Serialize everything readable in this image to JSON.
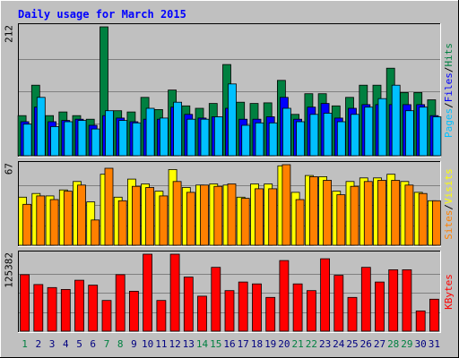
{
  "chart_data": [
    {
      "type": "bar",
      "title": "Daily usage for March 2015",
      "categories": [
        "1",
        "2",
        "3",
        "4",
        "5",
        "6",
        "7",
        "8",
        "9",
        "10",
        "11",
        "12",
        "13",
        "14",
        "15",
        "16",
        "17",
        "18",
        "19",
        "20",
        "21",
        "22",
        "23",
        "24",
        "25",
        "26",
        "27",
        "28",
        "29",
        "30",
        "31"
      ],
      "weekend_days": [
        "1",
        "7",
        "8",
        "14",
        "15",
        "21",
        "22",
        "28",
        "29"
      ],
      "ymax": 212,
      "ymax_label": "212",
      "series_labels": [
        "Pages",
        "Files",
        "Hits"
      ],
      "series_label_separator": "/",
      "series": [
        {
          "name": "Hits",
          "color": "#008040",
          "values": [
            66,
            116,
            66,
            72,
            66,
            60,
            212,
            74,
            72,
            96,
            76,
            108,
            82,
            78,
            86,
            150,
            88,
            86,
            87,
            124,
            68,
            102,
            102,
            82,
            96,
            116,
            116,
            144,
            104,
            104,
            92
          ]
        },
        {
          "name": "Files",
          "color": "#0000ff",
          "values": [
            56,
            80,
            56,
            58,
            60,
            50,
            66,
            62,
            56,
            60,
            60,
            80,
            68,
            62,
            64,
            78,
            60,
            60,
            64,
            96,
            60,
            80,
            86,
            62,
            78,
            84,
            84,
            84,
            84,
            84,
            66
          ]
        },
        {
          "name": "Pages",
          "color": "#00c0ff",
          "values": [
            52,
            96,
            48,
            56,
            58,
            44,
            74,
            58,
            54,
            78,
            62,
            88,
            60,
            60,
            64,
            118,
            50,
            54,
            54,
            78,
            56,
            68,
            70,
            56,
            68,
            80,
            94,
            116,
            74,
            80,
            64
          ]
        }
      ]
    },
    {
      "type": "bar",
      "categories": [
        "1",
        "2",
        "3",
        "4",
        "5",
        "6",
        "7",
        "8",
        "9",
        "10",
        "11",
        "12",
        "13",
        "14",
        "15",
        "16",
        "17",
        "18",
        "19",
        "20",
        "21",
        "22",
        "23",
        "24",
        "25",
        "26",
        "27",
        "28",
        "29",
        "30",
        "31"
      ],
      "ymax": 67,
      "ymax_label": "67",
      "series_labels": [
        "Sites",
        "Visits"
      ],
      "series_label_separator": "/",
      "series": [
        {
          "name": "Visits",
          "color": "#ffff00",
          "values": [
            40,
            43,
            41,
            46,
            53,
            36,
            59,
            40,
            55,
            51,
            45,
            63,
            48,
            50,
            51,
            50,
            40,
            51,
            51,
            66,
            44,
            58,
            57,
            45,
            53,
            56,
            56,
            59,
            53,
            44,
            37
          ]
        },
        {
          "name": "Sites",
          "color": "#ff8000",
          "values": [
            34,
            41,
            38,
            45,
            50,
            21,
            64,
            37,
            49,
            48,
            41,
            53,
            44,
            50,
            49,
            51,
            39,
            47,
            47,
            67,
            38,
            57,
            54,
            42,
            49,
            53,
            54,
            54,
            50,
            43,
            37
          ]
        }
      ]
    },
    {
      "type": "bar",
      "categories": [
        "1",
        "2",
        "3",
        "4",
        "5",
        "6",
        "7",
        "8",
        "9",
        "10",
        "11",
        "12",
        "13",
        "14",
        "15",
        "16",
        "17",
        "18",
        "19",
        "20",
        "21",
        "22",
        "23",
        "24",
        "25",
        "26",
        "27",
        "28",
        "29",
        "30",
        "31"
      ],
      "ymax": 125382,
      "ymax_label": "125382",
      "series_labels": [
        "KBytes"
      ],
      "series": [
        {
          "name": "KBytes",
          "color": "#ff0000",
          "values": [
            92000,
            76000,
            71000,
            68000,
            83000,
            75000,
            50000,
            92000,
            65000,
            125382,
            50000,
            125382,
            88000,
            57000,
            104000,
            66000,
            80000,
            77000,
            55000,
            115000,
            77000,
            66000,
            118000,
            91000,
            55000,
            104000,
            80000,
            100000,
            100000,
            33000,
            52000
          ]
        }
      ]
    }
  ]
}
